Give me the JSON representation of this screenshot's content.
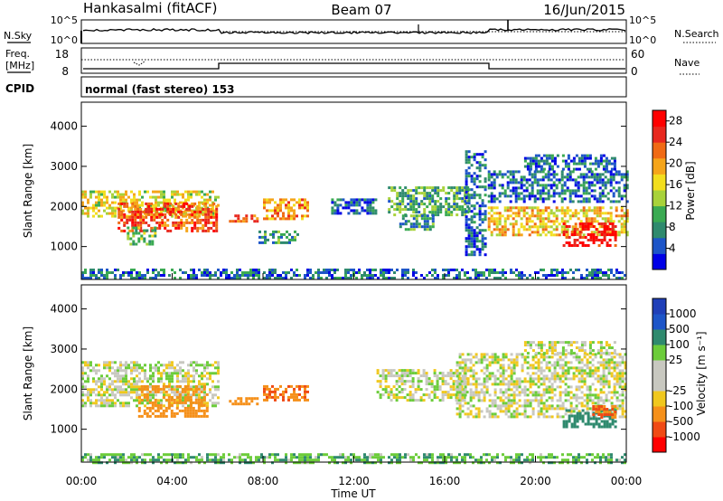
{
  "header": {
    "station": "Hankasalmi (fitACF)",
    "beam": "Beam 07",
    "date": "16/Jun/2015"
  },
  "nsky_panel": {
    "left_label": "N.Sky",
    "right_label": "N.Search",
    "left_ticks": [
      "10^5",
      "10^0"
    ],
    "right_ticks": [
      "10^5",
      "10^0"
    ]
  },
  "freq_panel": {
    "left_label_1": "Freq.",
    "left_label_2": "[MHz]",
    "right_label": "Nave",
    "left_ticks": [
      "18",
      "8"
    ],
    "right_ticks": [
      "60",
      "0"
    ]
  },
  "cpid_panel": {
    "label": "CPID",
    "text": "normal (fast stereo) 153"
  },
  "colors": {
    "power": [
      "#0000e6",
      "#1d55c8",
      "#2f8a6e",
      "#3aaa52",
      "#a8d23a",
      "#f2de1e",
      "#f5a51a",
      "#f06a14",
      "#e8281e",
      "#ff0000"
    ],
    "velocity": [
      "#ff0000",
      "#f04a14",
      "#f5901a",
      "#f0c81e",
      "#c8c8c0",
      "#c8c8c0",
      "#6ccc3a",
      "#2f8a6e",
      "#1d55c8",
      "#1f3fb8"
    ]
  },
  "chart_data": [
    {
      "type": "heatmap",
      "name": "Power",
      "x": {
        "label": "",
        "unit": "UT hours",
        "range": [
          0,
          24
        ]
      },
      "y": {
        "label": "Slant Range [km]",
        "range": [
          180,
          4600
        ],
        "ticks": [
          "4000",
          "3000",
          "2000",
          "1000"
        ],
        "tick_values": [
          4000,
          3000,
          2000,
          1000
        ]
      },
      "colorbar": {
        "label": "Power [dB]",
        "ticks": [
          "28",
          "24",
          "20",
          "16",
          "12",
          "8",
          "4"
        ],
        "tick_values": [
          28,
          24,
          20,
          16,
          12,
          8,
          4
        ],
        "range": [
          0,
          30
        ]
      },
      "echo_regions": [
        {
          "t0": 0.0,
          "t1": 6.0,
          "r0": 1750,
          "r1": 2400,
          "level": 16
        },
        {
          "t0": 1.6,
          "t1": 6.0,
          "r0": 1400,
          "r1": 2100,
          "level": 24
        },
        {
          "t0": 2.0,
          "t1": 3.2,
          "r0": 1050,
          "r1": 1500,
          "level": 12
        },
        {
          "t0": 6.5,
          "t1": 7.8,
          "r0": 1650,
          "r1": 1800,
          "level": 22
        },
        {
          "t0": 7.8,
          "t1": 9.5,
          "r0": 1100,
          "r1": 1400,
          "level": 8
        },
        {
          "t0": 8.0,
          "t1": 10.0,
          "r0": 1700,
          "r1": 2200,
          "level": 20
        },
        {
          "t0": 11.0,
          "t1": 13.0,
          "r0": 1800,
          "r1": 2200,
          "level": 6
        },
        {
          "t0": 13.5,
          "t1": 17.0,
          "r0": 1800,
          "r1": 2500,
          "level": 10
        },
        {
          "t0": 14.0,
          "t1": 15.5,
          "r0": 1400,
          "r1": 1800,
          "level": 8
        },
        {
          "t0": 16.9,
          "t1": 17.8,
          "r0": 800,
          "r1": 3400,
          "level": 6
        },
        {
          "t0": 17.9,
          "t1": 24.0,
          "r0": 1300,
          "r1": 2000,
          "level": 18
        },
        {
          "t0": 17.9,
          "t1": 24.0,
          "r0": 2100,
          "r1": 2900,
          "level": 6
        },
        {
          "t0": 19.5,
          "t1": 23.5,
          "r0": 2900,
          "r1": 3300,
          "level": 6
        },
        {
          "t0": 21.2,
          "t1": 23.5,
          "r0": 1050,
          "r1": 1600,
          "level": 28
        },
        {
          "t0": 0.0,
          "t1": 24.0,
          "r0": 180,
          "r1": 450,
          "level": 6
        }
      ]
    },
    {
      "type": "heatmap",
      "name": "Velocity",
      "x": {
        "label": "Time UT",
        "ticks": [
          "00:00",
          "04:00",
          "08:00",
          "12:00",
          "16:00",
          "20:00",
          "00:00"
        ],
        "tick_values": [
          0,
          4,
          8,
          12,
          16,
          20,
          24
        ],
        "range": [
          0,
          24
        ]
      },
      "y": {
        "label": "Slant Range [km]",
        "range": [
          180,
          4600
        ],
        "ticks": [
          "4000",
          "3000",
          "2000",
          "1000"
        ],
        "tick_values": [
          4000,
          3000,
          2000,
          1000
        ]
      },
      "colorbar": {
        "label": "Velocity [m s⁻¹]",
        "ticks": [
          "1000",
          "500",
          "100",
          "25",
          "-25",
          "-100",
          "-500",
          "-1000"
        ],
        "tick_values": [
          1000,
          500,
          100,
          25,
          -25,
          -100,
          -500,
          -1000
        ]
      },
      "echo_regions": [
        {
          "t0": 0.0,
          "t1": 6.0,
          "r0": 1600,
          "r1": 2700,
          "level": 0
        },
        {
          "t0": 2.5,
          "t1": 5.5,
          "r0": 1300,
          "r1": 2100,
          "level": -400
        },
        {
          "t0": 6.5,
          "t1": 7.8,
          "r0": 1600,
          "r1": 1800,
          "level": -300
        },
        {
          "t0": 8.0,
          "t1": 10.0,
          "r0": 1700,
          "r1": 2100,
          "level": -500
        },
        {
          "t0": 13.0,
          "t1": 17.0,
          "r0": 1700,
          "r1": 2500,
          "level": 0
        },
        {
          "t0": 16.5,
          "t1": 24.0,
          "r0": 1300,
          "r1": 2900,
          "level": 0
        },
        {
          "t0": 19.5,
          "t1": 23.5,
          "r0": 2900,
          "r1": 3200,
          "level": 0
        },
        {
          "t0": 21.2,
          "t1": 23.5,
          "r0": 1050,
          "r1": 1500,
          "level": 200
        },
        {
          "t0": 22.5,
          "t1": 23.5,
          "r0": 1300,
          "r1": 1600,
          "level": -500
        },
        {
          "t0": 0.0,
          "t1": 24.0,
          "r0": 180,
          "r1": 400,
          "level": 80
        }
      ]
    }
  ]
}
